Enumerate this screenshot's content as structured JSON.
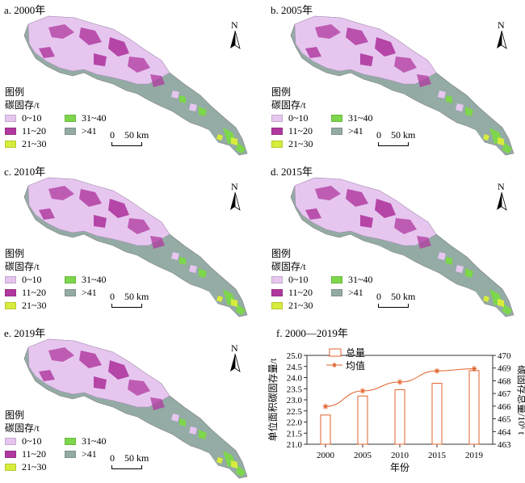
{
  "panels": [
    {
      "title": "a. 2000年"
    },
    {
      "title": "b. 2005年"
    },
    {
      "title": "c. 2010年"
    },
    {
      "title": "d. 2015年"
    },
    {
      "title": "e. 2019年"
    }
  ],
  "legend": {
    "heading1": "图例",
    "heading2": "碳固存/t",
    "items": [
      {
        "label": "0~10",
        "color": "#e6c6ef"
      },
      {
        "label": "31~40",
        "color": "#7dd64b"
      },
      {
        "label": "11~20",
        "color": "#b0389f"
      },
      {
        "label": ">41",
        "color": "#94aba5"
      },
      {
        "label": "21~30",
        "color": "#d8ec3c"
      }
    ]
  },
  "north_label": "N",
  "scale": {
    "zero": "0",
    "label": "50 km"
  },
  "colors": {
    "low": "#e6c6ef",
    "mid": "#b0389f",
    "high": "#d8ec3c",
    "green": "#7dd64b",
    "gray": "#94aba5",
    "chart": "#e0622c"
  },
  "chart_data": {
    "type": "bar+line",
    "title": "f. 2000—2019年",
    "categories": [
      "2000",
      "2005",
      "2010",
      "2015",
      "2019"
    ],
    "series": [
      {
        "name": "总量",
        "kind": "bar",
        "axis": "right",
        "values": [
          465.3,
          466.8,
          467.3,
          467.8,
          468.8
        ]
      },
      {
        "name": "均值",
        "kind": "line",
        "axis": "left",
        "values": [
          22.7,
          23.4,
          23.8,
          24.3,
          24.4
        ]
      }
    ],
    "xlabel": "年份",
    "ylabel_left": "单位面积碳固存量/t",
    "ylabel_right": "碳固存总量/10⁶ t",
    "ylim_left": [
      21.0,
      25.0
    ],
    "yticks_left": [
      "21.0",
      "21.5",
      "22.0",
      "22.5",
      "23.0",
      "23.5",
      "24.0",
      "24.5",
      "25.0"
    ],
    "ylim_right": [
      463,
      470
    ],
    "yticks_right": [
      "463",
      "464",
      "465",
      "466",
      "467",
      "468",
      "469",
      "470"
    ],
    "legend_position": "top-left"
  }
}
